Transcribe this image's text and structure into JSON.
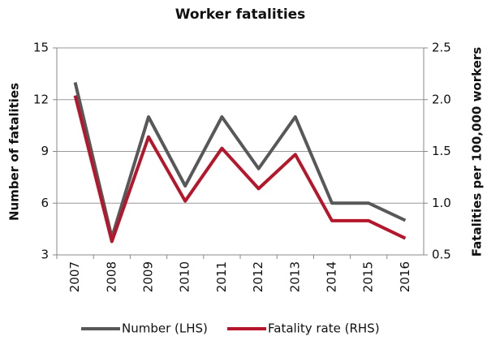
{
  "chart_data": {
    "type": "line",
    "title": "Worker fatalities",
    "y_label": "Number of fatalities",
    "y2_label": "Fatalities per 100,000 workers",
    "categories": [
      "2007",
      "2008",
      "2009",
      "2010",
      "2011",
      "2012",
      "2013",
      "2014",
      "2015",
      "2016"
    ],
    "series": [
      {
        "name": "Number (LHS)",
        "color": "#58585a",
        "values": [
          13,
          4,
          11,
          7,
          11,
          8,
          11,
          6,
          6,
          5
        ]
      },
      {
        "name": "Fatality rate (RHS)",
        "color": "#b5162b",
        "axis": "y2",
        "values": [
          2.04,
          0.63,
          1.64,
          1.02,
          1.53,
          1.14,
          1.47,
          0.83,
          0.83,
          0.66
        ]
      }
    ],
    "ylim": [
      3,
      15
    ],
    "yticks": [
      3,
      6,
      9,
      12,
      15
    ],
    "y2lim": [
      0.5,
      2.5
    ],
    "y2ticks": [
      0.5,
      {
        "value": 1.0,
        "label": "1.0"
      },
      1.5,
      {
        "value": 2.0,
        "label": "2.0"
      },
      2.5
    ],
    "grid": true,
    "legend": "bottom"
  }
}
